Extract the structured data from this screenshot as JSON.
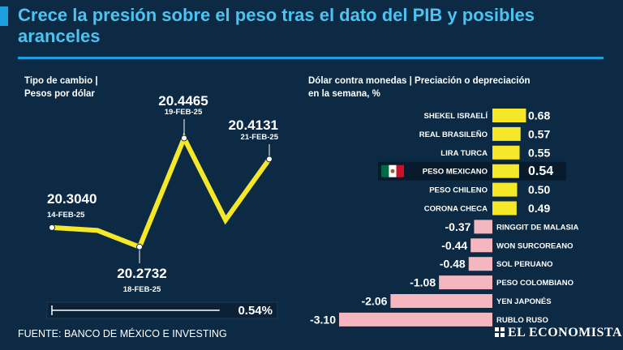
{
  "title": "Crece la presión sobre el peso tras el dato del PIB y posibles aranceles",
  "left_subtitle": [
    "Tipo de cambio |",
    "Pesos por dólar"
  ],
  "right_subtitle": [
    "Dólar contra monedas | Preciación o depreciación",
    "en la semana, %"
  ],
  "source": "FUENTE: BANCO DE MÉXICO E INVESTING",
  "brand": "EL ECONOMISTA",
  "colors": {
    "background": "#0c2a44",
    "title": "#4cc3f0",
    "accent": "#1e9fe0",
    "line": "#f5e829",
    "positive_bar": "#f5e829",
    "negative_bar": "#f4b6bf",
    "progress_fill": "#ffffff",
    "progress_track": "#0a2136"
  },
  "progress": {
    "value": 0.54,
    "label": "0.54%"
  },
  "chart_data": [
    {
      "type": "line",
      "title": "Tipo de cambio | Pesos por dólar",
      "ylabel": "Pesos por dólar",
      "ylim": [
        20.26,
        20.46
      ],
      "points": [
        {
          "date": "14-FEB-25",
          "value": 20.304,
          "label": "20.3040",
          "annotated": true
        },
        {
          "date": "",
          "value": 20.2995,
          "label": "",
          "annotated": false
        },
        {
          "date": "18-FEB-25",
          "value": 20.2732,
          "label": "20.2732",
          "annotated": true
        },
        {
          "date": "19-FEB-25",
          "value": 20.4465,
          "label": "20.4465",
          "annotated": true
        },
        {
          "date": "",
          "value": 20.316,
          "label": "",
          "annotated": false
        },
        {
          "date": "21-FEB-25",
          "value": 20.4131,
          "label": "20.4131",
          "annotated": true
        }
      ]
    },
    {
      "type": "bar",
      "orientation": "horizontal",
      "title": "Dólar contra monedas | Preciación o depreciación en la semana, %",
      "xlim": [
        -3.1,
        0.68
      ],
      "categories": [
        "SHEKEL ISRAELÍ",
        "REAL BRASILEÑO",
        "LIRA TURCA",
        "PESO MEXICANO",
        "PESO CHILENO",
        "CORONA CHECA",
        "RINGGIT DE MALASIA",
        "WON SURCOREANO",
        "SOL PERUANO",
        "PESO COLOMBIANO",
        "YEN JAPONÉS",
        "RUBLO RUSO"
      ],
      "values": [
        0.68,
        0.57,
        0.55,
        0.54,
        0.5,
        0.49,
        -0.37,
        -0.44,
        -0.48,
        -1.08,
        -2.06,
        -3.1
      ],
      "value_labels": [
        "0.68",
        "0.57",
        "0.55",
        "0.54",
        "0.50",
        "0.49",
        "-0.37",
        "-0.44",
        "-0.48",
        "-1.08",
        "-2.06",
        "-3.10"
      ],
      "highlight": "PESO MEXICANO"
    }
  ]
}
